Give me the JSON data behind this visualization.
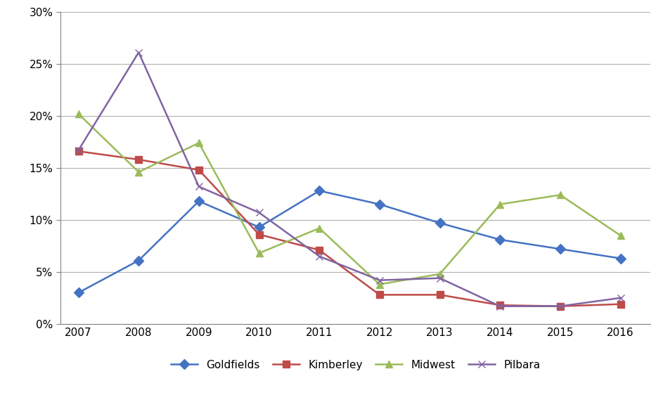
{
  "years": [
    2007,
    2008,
    2009,
    2010,
    2011,
    2012,
    2013,
    2014,
    2015,
    2016
  ],
  "goldfields": [
    0.03,
    0.061,
    0.118,
    0.093,
    0.128,
    0.115,
    0.097,
    0.081,
    0.072,
    0.063
  ],
  "kimberley": [
    0.166,
    0.158,
    0.148,
    0.086,
    0.071,
    0.028,
    0.028,
    0.018,
    0.017,
    0.019
  ],
  "midwest": [
    0.202,
    0.146,
    0.174,
    0.068,
    0.092,
    0.038,
    0.048,
    0.115,
    0.124,
    0.085
  ],
  "pilbara": [
    0.167,
    0.261,
    0.132,
    0.107,
    0.065,
    0.042,
    0.044,
    0.017,
    0.017,
    0.025
  ],
  "colors": {
    "goldfields": "#4472C4",
    "kimberley": "#BE4B48",
    "midwest": "#9BBB59",
    "pilbara": "#8064A2"
  },
  "markers": {
    "goldfields": "D",
    "kimberley": "s",
    "midwest": "^",
    "pilbara": "x"
  },
  "legend_labels": [
    "Goldfields",
    "Kimberley",
    "Midwest",
    "Pilbara"
  ],
  "ylim": [
    0,
    0.3
  ],
  "yticks": [
    0.0,
    0.05,
    0.1,
    0.15,
    0.2,
    0.25,
    0.3
  ],
  "background_color": "#FFFFFF",
  "grid_color": "#B0B0B0"
}
